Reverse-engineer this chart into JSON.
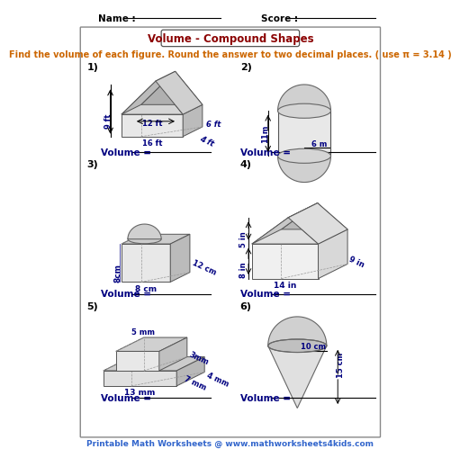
{
  "title": "Volume - Compound Shapes",
  "instruction": "Find the volume of each figure. Round the answer to two decimal places. ( use π = 3.14 )",
  "name_label": "Name :",
  "score_label": "Score :",
  "footer": "Printable Math Worksheets @ www.mathworksheets4kids.com",
  "bg_color": "#ffffff",
  "title_color": "#8B0000",
  "instruction_color": "#cc6600",
  "dim_color": "#000080",
  "footer_color": "#3366cc",
  "volume_label": "Volume = ",
  "gray_light": "#e8e8e8",
  "gray_mid": "#cccccc",
  "gray_dark": "#aaaaaa",
  "gray_side": "#bbbbbb"
}
